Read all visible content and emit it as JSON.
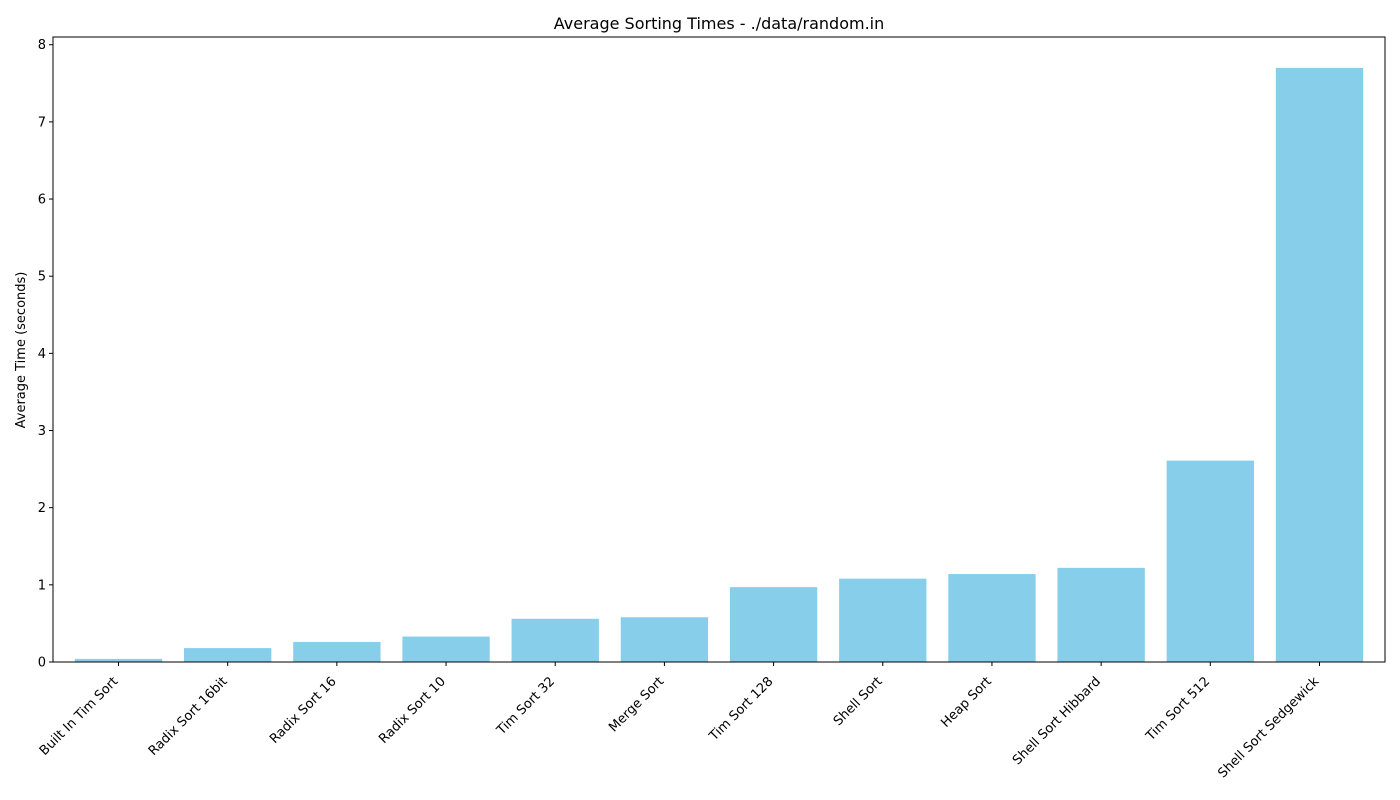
{
  "chart_data": {
    "type": "bar",
    "title": "Average Sorting Times - ./data/random.in",
    "xlabel": "",
    "ylabel": "Average Time (seconds)",
    "categories": [
      "Built In Tim Sort",
      "Radix Sort 16bit",
      "Radix Sort 16",
      "Radix Sort 10",
      "Tim Sort 32",
      "Merge Sort",
      "Tim Sort 128",
      "Shell Sort",
      "Heap Sort",
      "Shell Sort Hibbard",
      "Tim Sort 512",
      "Shell Sort Sedgewick"
    ],
    "values": [
      0.04,
      0.18,
      0.26,
      0.33,
      0.56,
      0.58,
      0.97,
      1.08,
      1.14,
      1.22,
      2.61,
      7.7
    ],
    "ylim": [
      0,
      8.1
    ],
    "yticks": [
      0,
      1,
      2,
      3,
      4,
      5,
      6,
      7,
      8
    ],
    "bar_color": "#87ceeb",
    "grid": false,
    "legend": "none"
  }
}
